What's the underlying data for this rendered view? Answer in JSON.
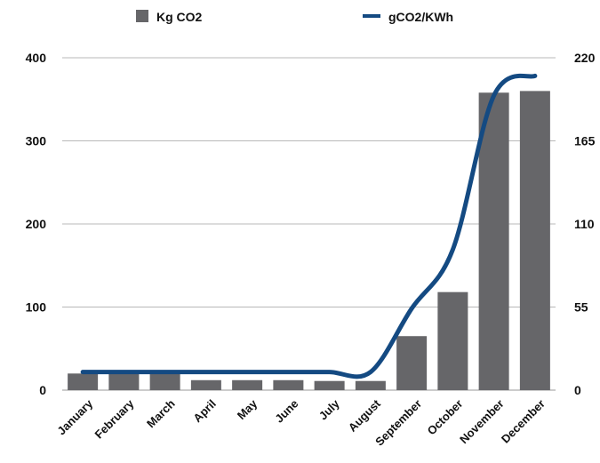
{
  "chart_data": {
    "type": "bar",
    "categories": [
      "January",
      "February",
      "March",
      "April",
      "May",
      "June",
      "July",
      "August",
      "September",
      "October",
      "November",
      "December"
    ],
    "series": [
      {
        "name": "Kg CO2",
        "type": "bar",
        "axis": "left",
        "color": "#666669",
        "values": [
          20,
          20,
          20,
          12,
          12,
          12,
          11,
          11,
          65,
          118,
          358,
          360
        ]
      },
      {
        "name": "gCO2/KWh",
        "type": "line",
        "axis": "right",
        "color": "#144a82",
        "values": [
          12,
          12,
          12,
          12,
          12,
          12,
          12,
          12,
          54,
          93,
          195,
          208
        ]
      }
    ],
    "left_axis": {
      "ylim": [
        0,
        400
      ],
      "ticks": [
        0,
        100,
        200,
        300,
        400
      ]
    },
    "right_axis": {
      "ylim": [
        0,
        220
      ],
      "ticks": [
        0,
        55,
        110,
        165,
        220
      ]
    },
    "grid": true,
    "legend_position": "top"
  }
}
